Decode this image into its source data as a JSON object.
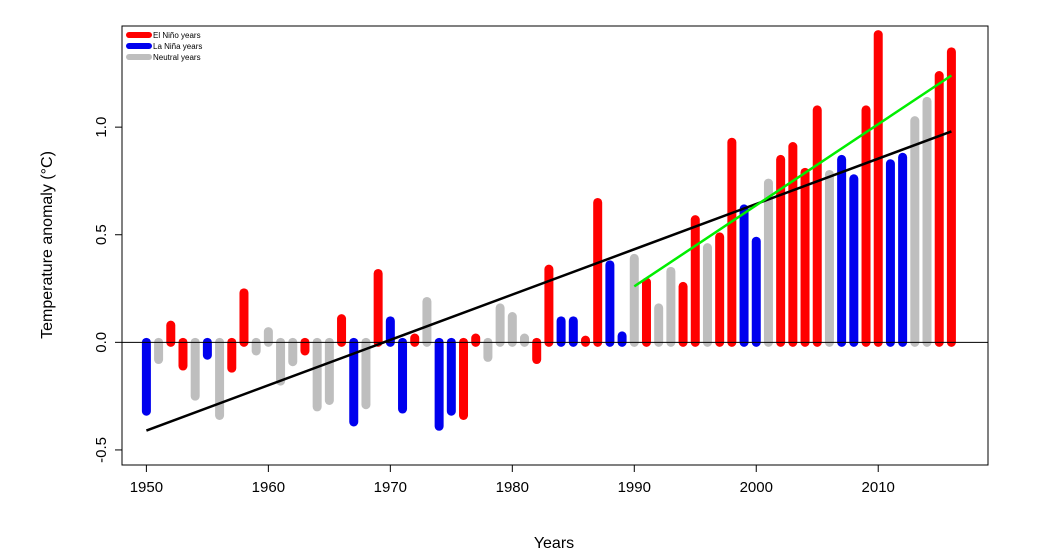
{
  "chart_data": {
    "type": "bar",
    "xlabel": "Years",
    "ylabel": "Temperature anomaly (°C)",
    "xlim": [
      1948,
      2019
    ],
    "ylim": [
      -0.57,
      1.47
    ],
    "xticks": [
      1950,
      1960,
      1970,
      1980,
      1990,
      2000,
      2010
    ],
    "yticks": [
      -0.5,
      0.0,
      0.5,
      1.0
    ],
    "ytick_labels": [
      "-0.5",
      "0.0",
      "0.5",
      "1.0"
    ],
    "grid": false,
    "legend_position": "top-left",
    "legend": [
      {
        "key": "el_nino",
        "label": "El Niño  years",
        "color": "#ff0000"
      },
      {
        "key": "la_nina",
        "label": "La Niña years",
        "color": "#0000ee"
      },
      {
        "key": "neutral",
        "label": "Neutral years",
        "color": "#bebebe"
      }
    ],
    "bars": [
      {
        "x": 1950,
        "value": -0.32,
        "type": "la_nina"
      },
      {
        "x": 1951,
        "value": -0.08,
        "type": "neutral"
      },
      {
        "x": 1952,
        "value": 0.08,
        "type": "el_nino"
      },
      {
        "x": 1953,
        "value": -0.11,
        "type": "el_nino"
      },
      {
        "x": 1954,
        "value": -0.25,
        "type": "neutral"
      },
      {
        "x": 1955,
        "value": -0.06,
        "type": "la_nina"
      },
      {
        "x": 1956,
        "value": -0.34,
        "type": "neutral"
      },
      {
        "x": 1957,
        "value": -0.12,
        "type": "el_nino"
      },
      {
        "x": 1958,
        "value": 0.23,
        "type": "el_nino"
      },
      {
        "x": 1959,
        "value": -0.04,
        "type": "neutral"
      },
      {
        "x": 1960,
        "value": 0.05,
        "type": "neutral"
      },
      {
        "x": 1961,
        "value": -0.18,
        "type": "neutral"
      },
      {
        "x": 1962,
        "value": -0.09,
        "type": "neutral"
      },
      {
        "x": 1963,
        "value": -0.04,
        "type": "el_nino"
      },
      {
        "x": 1964,
        "value": -0.3,
        "type": "neutral"
      },
      {
        "x": 1965,
        "value": -0.27,
        "type": "neutral"
      },
      {
        "x": 1966,
        "value": 0.11,
        "type": "el_nino"
      },
      {
        "x": 1967,
        "value": -0.37,
        "type": "la_nina"
      },
      {
        "x": 1968,
        "value": -0.29,
        "type": "neutral"
      },
      {
        "x": 1969,
        "value": 0.32,
        "type": "el_nino"
      },
      {
        "x": 1970,
        "value": 0.1,
        "type": "la_nina"
      },
      {
        "x": 1971,
        "value": -0.31,
        "type": "la_nina"
      },
      {
        "x": 1972,
        "value": 0.02,
        "type": "el_nino"
      },
      {
        "x": 1973,
        "value": 0.19,
        "type": "neutral"
      },
      {
        "x": 1974,
        "value": -0.39,
        "type": "la_nina"
      },
      {
        "x": 1975,
        "value": -0.32,
        "type": "la_nina"
      },
      {
        "x": 1976,
        "value": -0.34,
        "type": "el_nino"
      },
      {
        "x": 1977,
        "value": 0.02,
        "type": "el_nino"
      },
      {
        "x": 1978,
        "value": -0.07,
        "type": "neutral"
      },
      {
        "x": 1979,
        "value": 0.16,
        "type": "neutral"
      },
      {
        "x": 1980,
        "value": 0.12,
        "type": "neutral"
      },
      {
        "x": 1981,
        "value": 0.02,
        "type": "neutral"
      },
      {
        "x": 1982,
        "value": -0.08,
        "type": "el_nino"
      },
      {
        "x": 1983,
        "value": 0.34,
        "type": "el_nino"
      },
      {
        "x": 1984,
        "value": 0.1,
        "type": "la_nina"
      },
      {
        "x": 1985,
        "value": 0.1,
        "type": "la_nina"
      },
      {
        "x": 1986,
        "value": 0.01,
        "type": "el_nino"
      },
      {
        "x": 1987,
        "value": 0.65,
        "type": "el_nino"
      },
      {
        "x": 1988,
        "value": 0.36,
        "type": "la_nina"
      },
      {
        "x": 1989,
        "value": 0.03,
        "type": "la_nina"
      },
      {
        "x": 1990,
        "value": 0.39,
        "type": "neutral"
      },
      {
        "x": 1991,
        "value": 0.28,
        "type": "el_nino"
      },
      {
        "x": 1992,
        "value": 0.16,
        "type": "neutral"
      },
      {
        "x": 1993,
        "value": 0.33,
        "type": "neutral"
      },
      {
        "x": 1994,
        "value": 0.26,
        "type": "el_nino"
      },
      {
        "x": 1995,
        "value": 0.57,
        "type": "el_nino"
      },
      {
        "x": 1996,
        "value": 0.44,
        "type": "neutral"
      },
      {
        "x": 1997,
        "value": 0.49,
        "type": "el_nino"
      },
      {
        "x": 1998,
        "value": 0.93,
        "type": "el_nino"
      },
      {
        "x": 1999,
        "value": 0.62,
        "type": "la_nina"
      },
      {
        "x": 2000,
        "value": 0.47,
        "type": "la_nina"
      },
      {
        "x": 2001,
        "value": 0.74,
        "type": "neutral"
      },
      {
        "x": 2002,
        "value": 0.85,
        "type": "el_nino"
      },
      {
        "x": 2003,
        "value": 0.91,
        "type": "el_nino"
      },
      {
        "x": 2004,
        "value": 0.79,
        "type": "el_nino"
      },
      {
        "x": 2005,
        "value": 1.08,
        "type": "el_nino"
      },
      {
        "x": 2006,
        "value": 0.78,
        "type": "neutral"
      },
      {
        "x": 2007,
        "value": 0.85,
        "type": "la_nina"
      },
      {
        "x": 2008,
        "value": 0.76,
        "type": "la_nina"
      },
      {
        "x": 2009,
        "value": 1.08,
        "type": "el_nino"
      },
      {
        "x": 2010,
        "value": 1.43,
        "type": "el_nino"
      },
      {
        "x": 2011,
        "value": 0.83,
        "type": "la_nina"
      },
      {
        "x": 2012,
        "value": 0.86,
        "type": "la_nina"
      },
      {
        "x": 2013,
        "value": 1.03,
        "type": "neutral"
      },
      {
        "x": 2014,
        "value": 1.12,
        "type": "neutral"
      },
      {
        "x": 2015,
        "value": 1.24,
        "type": "el_nino"
      },
      {
        "x": 2016,
        "value": 1.35,
        "type": "el_nino"
      }
    ],
    "trend_lines": [
      {
        "color": "#000000",
        "x": [
          1950,
          2016
        ],
        "y": [
          -0.41,
          0.98
        ]
      },
      {
        "color": "#00ee00",
        "x": [
          1990,
          2016
        ],
        "y": [
          0.26,
          1.24
        ]
      }
    ],
    "zero_line": 0
  }
}
